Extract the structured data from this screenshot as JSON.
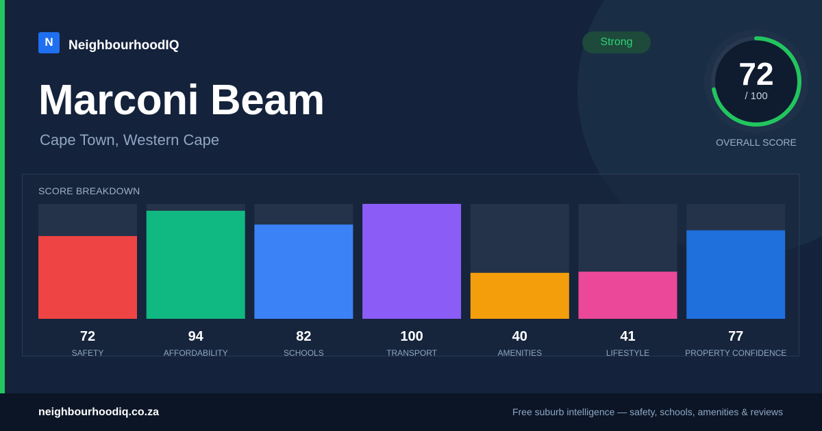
{
  "brand": {
    "logo_letter": "N",
    "name": "NeighbourhoodIQ"
  },
  "suburb": {
    "name": "Marconi Beam",
    "location": "Cape Town, Western Cape"
  },
  "badge": {
    "label": "Strong",
    "color": "#2fd27a"
  },
  "overall": {
    "score": "72",
    "out_of": "/ 100",
    "label": "OVERALL SCORE",
    "value": 72,
    "max": 100,
    "ring_color": "#22c55e"
  },
  "breakdown": {
    "title": "SCORE BREAKDOWN"
  },
  "chart_data": {
    "type": "bar",
    "title": "SCORE BREAKDOWN",
    "categories": [
      "SAFETY",
      "AFFORDABILITY",
      "SCHOOLS",
      "TRANSPORT",
      "AMENITIES",
      "LIFESTYLE",
      "PROPERTY CONFIDENCE"
    ],
    "values": [
      72,
      94,
      82,
      100,
      40,
      41,
      77
    ],
    "colors": [
      "#ef4444",
      "#10b981",
      "#3b82f6",
      "#8b5cf6",
      "#f59e0b",
      "#ec4899",
      "#1f6fdd"
    ],
    "ylim": [
      0,
      100
    ],
    "grid": false
  },
  "footer": {
    "url": "neighbourhoodiq.co.za",
    "tagline": "Free suburb intelligence — safety, schools, amenities & reviews"
  }
}
